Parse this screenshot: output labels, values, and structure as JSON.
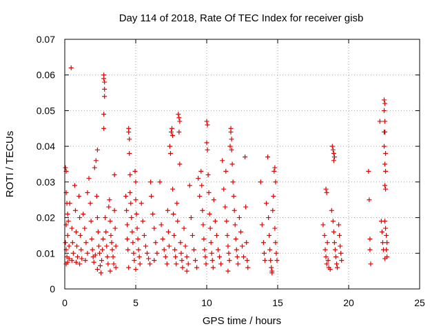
{
  "chart_data": {
    "type": "scatter",
    "title": "Day 114 of 2018, Rate Of TEC Index for receiver gisb",
    "xlabel": "GPS time / hours",
    "ylabel": "ROTI / TECUs",
    "xlim": [
      0,
      25
    ],
    "ylim": [
      0,
      0.07
    ],
    "xticks": [
      0,
      5,
      10,
      15,
      20,
      25
    ],
    "xtick_labels": [
      "0",
      "5",
      "10",
      "15",
      "20",
      "25"
    ],
    "yticks": [
      0,
      0.01,
      0.02,
      0.03,
      0.04,
      0.05,
      0.06,
      0.07
    ],
    "ytick_labels": [
      "0",
      "0.01",
      "0.02",
      "0.03",
      "0.04",
      "0.05",
      "0.06",
      "0.07"
    ],
    "grid": true,
    "marker": "+",
    "color": "#e00000",
    "series": [
      {
        "name": "gisb",
        "points": [
          [
            0.05,
            0.034
          ],
          [
            0.1,
            0.033
          ],
          [
            0.1,
            0.027
          ],
          [
            0.15,
            0.024
          ],
          [
            0.2,
            0.021
          ],
          [
            0.1,
            0.018
          ],
          [
            0.2,
            0.015
          ],
          [
            0.05,
            0.013
          ],
          [
            0.1,
            0.011
          ],
          [
            0.15,
            0.009
          ],
          [
            0.2,
            0.0075
          ],
          [
            0.1,
            0.007
          ],
          [
            0.3,
            0.0085
          ],
          [
            0.3,
            0.012
          ],
          [
            0.25,
            0.019
          ],
          [
            0.35,
            0.024
          ],
          [
            0.45,
            0.062
          ],
          [
            0.5,
            0.017
          ],
          [
            0.55,
            0.013
          ],
          [
            0.6,
            0.01
          ],
          [
            0.5,
            0.008
          ],
          [
            0.7,
            0.029
          ],
          [
            0.75,
            0.022
          ],
          [
            0.8,
            0.016
          ],
          [
            0.85,
            0.012
          ],
          [
            0.9,
            0.009
          ],
          [
            0.8,
            0.0075
          ],
          [
            1.0,
            0.026
          ],
          [
            1.05,
            0.02
          ],
          [
            1.1,
            0.015
          ],
          [
            1.15,
            0.011
          ],
          [
            1.2,
            0.0085
          ],
          [
            1.05,
            0.007
          ],
          [
            1.3,
            0.021
          ],
          [
            1.4,
            0.017
          ],
          [
            1.5,
            0.013
          ],
          [
            1.6,
            0.01
          ],
          [
            1.45,
            0.008
          ],
          [
            1.6,
            0.027
          ],
          [
            1.7,
            0.031
          ],
          [
            1.8,
            0.024
          ],
          [
            1.85,
            0.019
          ],
          [
            1.9,
            0.014
          ],
          [
            1.95,
            0.011
          ],
          [
            2.0,
            0.009
          ],
          [
            2.05,
            0.0075
          ],
          [
            2.1,
            0.034
          ],
          [
            2.2,
            0.036
          ],
          [
            2.25,
            0.026
          ],
          [
            2.3,
            0.039
          ],
          [
            2.3,
            0.02
          ],
          [
            2.35,
            0.016
          ],
          [
            2.4,
            0.012
          ],
          [
            2.45,
            0.01
          ],
          [
            2.5,
            0.0065
          ],
          [
            2.55,
            0.0045
          ],
          [
            2.6,
            0.008
          ],
          [
            2.65,
            0.011
          ],
          [
            2.7,
            0.014
          ],
          [
            2.3,
            0.0055
          ],
          [
            2.15,
            0.0095
          ],
          [
            2.75,
            0.06
          ],
          [
            2.75,
            0.059
          ],
          [
            2.8,
            0.058
          ],
          [
            2.8,
            0.056
          ],
          [
            2.8,
            0.054
          ],
          [
            2.75,
            0.049
          ],
          [
            2.75,
            0.045
          ],
          [
            2.85,
            0.02
          ],
          [
            2.9,
            0.016
          ],
          [
            2.95,
            0.012
          ],
          [
            3.0,
            0.009
          ],
          [
            3.05,
            0.007
          ],
          [
            3.1,
            0.023
          ],
          [
            3.15,
            0.025
          ],
          [
            3.2,
            0.019
          ],
          [
            3.25,
            0.015
          ],
          [
            3.3,
            0.013
          ],
          [
            3.35,
            0.011
          ],
          [
            3.4,
            0.009
          ],
          [
            3.45,
            0.007
          ],
          [
            3.5,
            0.032
          ],
          [
            3.5,
            0.022
          ],
          [
            3.55,
            0.017
          ],
          [
            3.6,
            0.012
          ],
          [
            3.6,
            0.006
          ],
          [
            3.2,
            0.005
          ],
          [
            4.3,
            0.026
          ],
          [
            4.35,
            0.022
          ],
          [
            4.4,
            0.018
          ],
          [
            4.4,
            0.014
          ],
          [
            4.45,
            0.011
          ],
          [
            4.5,
            0.045
          ],
          [
            4.5,
            0.044
          ],
          [
            4.55,
            0.042
          ],
          [
            4.55,
            0.038
          ],
          [
            4.6,
            0.032
          ],
          [
            4.6,
            0.027
          ],
          [
            4.65,
            0.024
          ],
          [
            4.7,
            0.02
          ],
          [
            4.75,
            0.016
          ],
          [
            4.8,
            0.013
          ],
          [
            4.85,
            0.01
          ],
          [
            4.9,
            0.008
          ],
          [
            4.95,
            0.033
          ],
          [
            5.0,
            0.03
          ],
          [
            5.0,
            0.025
          ],
          [
            5.05,
            0.021
          ],
          [
            5.1,
            0.017
          ],
          [
            5.15,
            0.014
          ],
          [
            5.2,
            0.011
          ],
          [
            5.25,
            0.009
          ],
          [
            5.3,
            0.007
          ],
          [
            5.4,
            0.024
          ],
          [
            5.5,
            0.019
          ],
          [
            5.6,
            0.015
          ],
          [
            5.7,
            0.012
          ],
          [
            5.8,
            0.01
          ],
          [
            5.9,
            0.0085
          ],
          [
            6.0,
            0.007
          ],
          [
            6.05,
            0.03
          ],
          [
            6.1,
            0.026
          ],
          [
            6.2,
            0.021
          ],
          [
            6.3,
            0.017
          ],
          [
            6.4,
            0.013
          ],
          [
            6.5,
            0.01
          ],
          [
            6.3,
            0.008
          ],
          [
            4.5,
            0.006
          ],
          [
            5.0,
            0.0055
          ],
          [
            6.7,
            0.03
          ],
          [
            6.8,
            0.018
          ],
          [
            6.9,
            0.014
          ],
          [
            7.0,
            0.011
          ],
          [
            7.1,
            0.009
          ],
          [
            7.2,
            0.007
          ],
          [
            7.25,
            0.022
          ],
          [
            7.3,
            0.016
          ],
          [
            7.35,
            0.012
          ],
          [
            7.4,
            0.04
          ],
          [
            7.45,
            0.038
          ],
          [
            7.5,
            0.044
          ],
          [
            7.55,
            0.045
          ],
          [
            7.6,
            0.043
          ],
          [
            7.6,
            0.028
          ],
          [
            7.65,
            0.021
          ],
          [
            7.7,
            0.015
          ],
          [
            7.75,
            0.011
          ],
          [
            7.8,
            0.009
          ],
          [
            7.85,
            0.007
          ],
          [
            7.9,
            0.024
          ],
          [
            7.95,
            0.019
          ],
          [
            8.0,
            0.049
          ],
          [
            8.05,
            0.048
          ],
          [
            8.1,
            0.047
          ],
          [
            8.05,
            0.044
          ],
          [
            8.1,
            0.035
          ],
          [
            8.15,
            0.013
          ],
          [
            8.2,
            0.01
          ],
          [
            8.25,
            0.008
          ],
          [
            8.3,
            0.006
          ],
          [
            8.4,
            0.017
          ],
          [
            8.5,
            0.012
          ],
          [
            8.6,
            0.009
          ],
          [
            8.7,
            0.007
          ],
          [
            8.8,
            0.029
          ],
          [
            8.9,
            0.02
          ],
          [
            9.0,
            0.015
          ],
          [
            9.1,
            0.011
          ],
          [
            9.2,
            0.008
          ],
          [
            9.3,
            0.006
          ],
          [
            8.6,
            0.005
          ],
          [
            9.4,
            0.031
          ],
          [
            9.5,
            0.026
          ],
          [
            9.6,
            0.033
          ],
          [
            9.65,
            0.029
          ],
          [
            9.7,
            0.022
          ],
          [
            9.75,
            0.018
          ],
          [
            9.8,
            0.014
          ],
          [
            9.85,
            0.011
          ],
          [
            9.9,
            0.009
          ],
          [
            9.95,
            0.007
          ],
          [
            10.0,
            0.047
          ],
          [
            10.05,
            0.046
          ],
          [
            10.0,
            0.041
          ],
          [
            10.05,
            0.039
          ],
          [
            10.1,
            0.032
          ],
          [
            10.15,
            0.027
          ],
          [
            10.2,
            0.021
          ],
          [
            10.25,
            0.017
          ],
          [
            10.3,
            0.013
          ],
          [
            10.35,
            0.01
          ],
          [
            10.4,
            0.008
          ],
          [
            10.45,
            0.006
          ],
          [
            10.5,
            0.025
          ],
          [
            10.6,
            0.019
          ],
          [
            10.7,
            0.015
          ],
          [
            10.8,
            0.011
          ],
          [
            10.9,
            0.009
          ],
          [
            11.0,
            0.007
          ],
          [
            11.1,
            0.036
          ],
          [
            11.2,
            0.028
          ],
          [
            11.3,
            0.023
          ],
          [
            11.35,
            0.033
          ],
          [
            11.4,
            0.019
          ],
          [
            11.45,
            0.015
          ],
          [
            11.5,
            0.012
          ],
          [
            11.55,
            0.01
          ],
          [
            11.6,
            0.008
          ],
          [
            11.65,
            0.04
          ],
          [
            11.7,
            0.045
          ],
          [
            11.7,
            0.044
          ],
          [
            11.75,
            0.042
          ],
          [
            11.75,
            0.039
          ],
          [
            11.8,
            0.035
          ],
          [
            11.85,
            0.03
          ],
          [
            11.9,
            0.026
          ],
          [
            11.95,
            0.022
          ],
          [
            12.0,
            0.018
          ],
          [
            12.05,
            0.014
          ],
          [
            12.1,
            0.011
          ],
          [
            12.15,
            0.009
          ],
          [
            12.2,
            0.007
          ],
          [
            12.3,
            0.02
          ],
          [
            12.4,
            0.016
          ],
          [
            12.5,
            0.012
          ],
          [
            12.6,
            0.009
          ],
          [
            12.7,
            0.037
          ],
          [
            12.75,
            0.023
          ],
          [
            12.8,
            0.013
          ],
          [
            12.85,
            0.008
          ],
          [
            12.9,
            0.006
          ],
          [
            11.5,
            0.005
          ],
          [
            13.8,
            0.03
          ],
          [
            13.9,
            0.018
          ],
          [
            14.0,
            0.013
          ],
          [
            14.05,
            0.01
          ],
          [
            14.1,
            0.008
          ],
          [
            14.2,
            0.024
          ],
          [
            14.3,
            0.037
          ],
          [
            14.35,
            0.02
          ],
          [
            14.4,
            0.015
          ],
          [
            14.45,
            0.011
          ],
          [
            14.5,
            0.008
          ],
          [
            14.55,
            0.006
          ],
          [
            14.6,
            0.005
          ],
          [
            14.65,
            0.022
          ],
          [
            14.7,
            0.026
          ],
          [
            14.75,
            0.033
          ],
          [
            14.8,
            0.034
          ],
          [
            14.85,
            0.03
          ],
          [
            14.8,
            0.017
          ],
          [
            14.85,
            0.013
          ],
          [
            14.9,
            0.01
          ],
          [
            14.95,
            0.008
          ],
          [
            14.6,
            0.0045
          ],
          [
            18.2,
            0.018
          ],
          [
            18.3,
            0.015
          ],
          [
            18.35,
            0.011
          ],
          [
            18.4,
            0.009
          ],
          [
            18.45,
            0.007
          ],
          [
            18.4,
            0.028
          ],
          [
            18.45,
            0.027
          ],
          [
            18.5,
            0.013
          ],
          [
            18.55,
            0.008
          ],
          [
            18.6,
            0.006
          ],
          [
            18.7,
            0.0055
          ],
          [
            18.85,
            0.04
          ],
          [
            18.9,
            0.039
          ],
          [
            18.95,
            0.038
          ],
          [
            19.0,
            0.037
          ],
          [
            18.95,
            0.036
          ],
          [
            18.8,
            0.022
          ],
          [
            18.9,
            0.019
          ],
          [
            18.95,
            0.016
          ],
          [
            19.0,
            0.013
          ],
          [
            19.05,
            0.011
          ],
          [
            19.1,
            0.009
          ],
          [
            19.15,
            0.007
          ],
          [
            19.2,
            0.006
          ],
          [
            19.3,
            0.018
          ],
          [
            19.35,
            0.015
          ],
          [
            19.4,
            0.012
          ],
          [
            19.45,
            0.01
          ],
          [
            19.5,
            0.008
          ],
          [
            21.4,
            0.033
          ],
          [
            21.45,
            0.025
          ],
          [
            21.5,
            0.014
          ],
          [
            21.5,
            0.011
          ],
          [
            21.55,
            0.007
          ],
          [
            22.2,
            0.047
          ],
          [
            22.3,
            0.019
          ],
          [
            22.35,
            0.016
          ],
          [
            22.4,
            0.013
          ],
          [
            22.45,
            0.011
          ],
          [
            22.5,
            0.053
          ],
          [
            22.55,
            0.052
          ],
          [
            22.5,
            0.05
          ],
          [
            22.55,
            0.047
          ],
          [
            22.5,
            0.044
          ],
          [
            22.55,
            0.044
          ],
          [
            22.5,
            0.04
          ],
          [
            22.6,
            0.038
          ],
          [
            22.55,
            0.035
          ],
          [
            22.6,
            0.033
          ],
          [
            22.55,
            0.029
          ],
          [
            22.6,
            0.028
          ],
          [
            22.55,
            0.019
          ],
          [
            22.6,
            0.017
          ],
          [
            22.65,
            0.015
          ],
          [
            22.7,
            0.013
          ],
          [
            22.65,
            0.011
          ],
          [
            22.7,
            0.009
          ],
          [
            22.55,
            0.0085
          ]
        ]
      }
    ]
  }
}
